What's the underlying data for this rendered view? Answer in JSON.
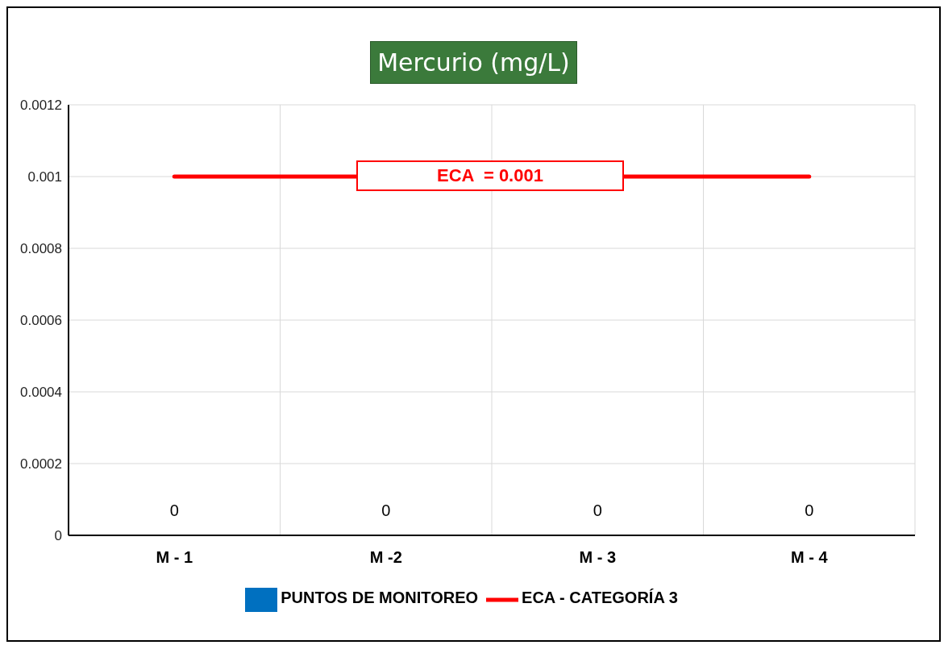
{
  "chart_data": {
    "type": "bar",
    "title": "Mercurio (mg/L)",
    "categories": [
      "M - 1",
      "M -2",
      "M - 3",
      "M - 4"
    ],
    "series": [
      {
        "name": "PUNTOS DE MONITOREO",
        "color": "#0070c0",
        "values": [
          0,
          0,
          0,
          0
        ],
        "data_labels": true
      },
      {
        "name": "ECA - CATEGORÍA 3",
        "type": "line",
        "color": "#ff0000",
        "values": [
          0.001,
          null,
          null,
          0.001
        ]
      }
    ],
    "ylim": [
      0,
      0.0012
    ],
    "yticks": [
      0,
      0.0002,
      0.0004,
      0.0006,
      0.0008,
      0.001,
      0.0012
    ],
    "grid": true,
    "legend": "bottom",
    "marker": "none",
    "annotations": [
      {
        "text": "ECA  = 0.001",
        "y": 0.001
      }
    ]
  }
}
